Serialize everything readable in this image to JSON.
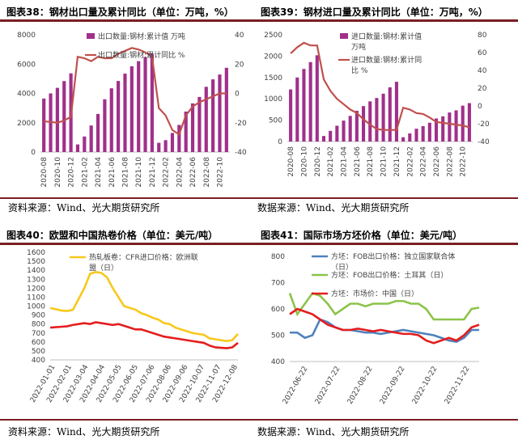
{
  "titles": {
    "c38": "图表38：钢材出口量及累计同比（单位：万吨，%）",
    "c39": "图表39：钢材进口量及累计同比（单位：万吨，%）",
    "c40": "图表40：欧盟和中国热卷价格（单位：美元/吨）",
    "c41": "图表41：国际市场方坯价格（单位：美元/吨）"
  },
  "sources": {
    "s1": "资料来源：Wind、光大期货研究所",
    "s2": "数据来源：Wind、光大期货研究所",
    "s3": "资料来源：Wind、光大期货研究所",
    "s4": "数据来源：Wind、光大期货研究所"
  },
  "colors": {
    "purple": "#a0308a",
    "red": "#c0504d",
    "yellow": "#f8c81c",
    "blue": "#4f81bd",
    "green": "#8cc34a",
    "bright_red": "#e41e1e",
    "rule": "#7a1f24"
  },
  "chart_data": [
    {
      "id": "c38",
      "type": "bar+line",
      "title": "钢材出口量及累计同比（单位：万吨，%）",
      "categories": [
        "2020-08",
        "2020-09",
        "2020-10",
        "2020-11",
        "2020-12",
        "2021-01",
        "2021-02",
        "2021-03",
        "2021-04",
        "2021-05",
        "2021-06",
        "2021-07",
        "2021-08",
        "2021-09",
        "2021-10",
        "2021-11",
        "2021-12",
        "2022-01",
        "2022-02",
        "2022-03",
        "2022-04",
        "2022-05",
        "2022-06",
        "2022-07",
        "2022-08",
        "2022-09",
        "2022-10",
        "2022-11"
      ],
      "xtick_labels": [
        "2020-08",
        "2020-10",
        "2020-12",
        "2021-02",
        "2021-04",
        "2021-06",
        "2021-08",
        "2021-10",
        "2021-12",
        "2022-02",
        "2022-04",
        "2022-06",
        "2022-08",
        "2022-10"
      ],
      "series": [
        {
          "name": "出口数量:钢材:累计值 万吨",
          "axis": "left",
          "kind": "bar",
          "values": [
            3650,
            4000,
            4380,
            4840,
            5370,
            520,
            1060,
            1810,
            2600,
            3600,
            4350,
            4850,
            5350,
            5850,
            6200,
            6480,
            6700,
            630,
            810,
            1300,
            1850,
            2760,
            3320,
            3760,
            4450,
            4960,
            5290,
            5750
          ]
        },
        {
          "name": "出口数量:钢材:累计同比 %",
          "axis": "right",
          "kind": "line",
          "values": [
            -19,
            -19.5,
            -20,
            -18.5,
            -16,
            25,
            24,
            22,
            25,
            24,
            24,
            27,
            29,
            31,
            30,
            28,
            25,
            -10,
            -15,
            -25,
            -28,
            -15,
            -9,
            -6,
            -4,
            -2,
            0,
            0
          ]
        }
      ],
      "ylim_left": [
        0,
        8000
      ],
      "yticks_left": [
        0,
        2000,
        4000,
        6000,
        8000
      ],
      "ylim_right": [
        -40,
        40
      ],
      "yticks_right": [
        -40,
        -20,
        0,
        20,
        40
      ]
    },
    {
      "id": "c39",
      "type": "bar+line",
      "title": "钢材进口量及累计同比（单位：万吨，%）",
      "categories": [
        "2020-08",
        "2020-09",
        "2020-10",
        "2020-11",
        "2020-12",
        "2021-01",
        "2021-02",
        "2021-03",
        "2021-04",
        "2021-05",
        "2021-06",
        "2021-07",
        "2021-08",
        "2021-09",
        "2021-10",
        "2021-11",
        "2021-12",
        "2022-01",
        "2022-02",
        "2022-03",
        "2022-04",
        "2022-05",
        "2022-06",
        "2022-07",
        "2022-08",
        "2022-09",
        "2022-10",
        "2022-11"
      ],
      "xtick_labels": [
        "2020-08",
        "2020-10",
        "2020-12",
        "2021-02",
        "2021-04",
        "2021-06",
        "2021-08",
        "2021-10",
        "2021-12",
        "2022-02",
        "2022-04",
        "2022-06",
        "2022-08",
        "2022-10"
      ],
      "series": [
        {
          "name": "进口数量:钢材:累计值 万吨",
          "axis": "left",
          "kind": "bar",
          "values": [
            1220,
            1500,
            1700,
            1860,
            2020,
            130,
            250,
            370,
            490,
            600,
            720,
            830,
            940,
            1020,
            1120,
            1270,
            1400,
            100,
            190,
            300,
            360,
            440,
            540,
            590,
            680,
            730,
            840,
            900
          ]
        },
        {
          "name": "进口数量:钢材:累计同比 %",
          "axis": "right",
          "kind": "line",
          "values": [
            59,
            66,
            71,
            68,
            68,
            30,
            17,
            8,
            2,
            -4,
            -8,
            -15,
            -21,
            -26,
            -27,
            -27,
            -27,
            -2,
            -4,
            -8,
            -9,
            -13,
            -18,
            -19,
            -20,
            -21,
            -22,
            -24
          ]
        }
      ],
      "ylim_left": [
        0,
        2500
      ],
      "yticks_left": [
        0,
        500,
        1000,
        1500,
        2000,
        2500
      ],
      "ylim_right": [
        -40,
        80
      ],
      "yticks_right": [
        -40,
        -20,
        0,
        20,
        40,
        60,
        80
      ]
    },
    {
      "id": "c40",
      "type": "line",
      "title": "欧盟和中国热卷价格（单位：美元/吨）",
      "xtick_labels": [
        "2022-01-01",
        "2022-02-01",
        "2022-03-04",
        "2022-04-04",
        "2022-05-05",
        "2022-06-05",
        "2022-07-06",
        "2022-08-06",
        "2022-09-06",
        "2022-10-07",
        "2022-11-07",
        "2022-12-08"
      ],
      "series": [
        {
          "name": "热轧板卷：CFR进口价格：欧洲联盟（日）",
          "color": "#f8c81c",
          "values": [
            980,
            965,
            950,
            945,
            960,
            1080,
            1200,
            1360,
            1380,
            1370,
            1320,
            1200,
            1100,
            1000,
            980,
            960,
            920,
            900,
            870,
            850,
            810,
            800,
            760,
            740,
            720,
            700,
            690,
            680,
            640,
            630,
            620,
            610,
            620,
            690
          ]
        },
        {
          "name": "",
          "color": "#e41e1e",
          "values": [
            760,
            765,
            770,
            775,
            790,
            800,
            810,
            800,
            820,
            810,
            800,
            790,
            800,
            780,
            760,
            740,
            740,
            720,
            700,
            680,
            660,
            650,
            640,
            630,
            620,
            610,
            600,
            590,
            560,
            540,
            535,
            530,
            540,
            590
          ]
        }
      ],
      "ylim": [
        400,
        1600
      ],
      "yticks": [
        400,
        500,
        600,
        700,
        800,
        900,
        1000,
        1100,
        1200,
        1300,
        1400,
        1500,
        1600
      ]
    },
    {
      "id": "c41",
      "type": "line",
      "title": "国际市场方坯价格（单位：美元/吨）",
      "xtick_labels": [
        "2022-06-22",
        "2022-07-22",
        "2022-08-22",
        "2022-09-22",
        "2022-10-22",
        "2022-11-22"
      ],
      "series": [
        {
          "name": "方坯：FOB出口价格：独立国家联合体（日）",
          "color": "#4f81bd",
          "values": [
            510,
            510,
            490,
            500,
            560,
            550,
            530,
            520,
            520,
            515,
            510,
            510,
            505,
            510,
            515,
            520,
            515,
            510,
            505,
            500,
            490,
            480,
            475,
            490,
            520,
            520
          ]
        },
        {
          "name": "方坯：FOB出口价格：土耳其（日）",
          "color": "#8cc34a",
          "values": [
            660,
            580,
            620,
            660,
            650,
            620,
            580,
            600,
            620,
            620,
            610,
            620,
            620,
            620,
            630,
            630,
            620,
            620,
            600,
            560,
            560,
            560,
            560,
            560,
            600,
            605
          ]
        },
        {
          "name": "方坯：市场价：中国（日）",
          "color": "#e41e1e",
          "values": [
            580,
            600,
            590,
            580,
            560,
            540,
            530,
            520,
            520,
            525,
            520,
            515,
            520,
            515,
            510,
            505,
            505,
            500,
            480,
            470,
            480,
            490,
            480,
            500,
            530,
            540
          ]
        }
      ],
      "ylim": [
        400,
        800
      ],
      "yticks": [
        400,
        500,
        600,
        700,
        800
      ]
    }
  ]
}
